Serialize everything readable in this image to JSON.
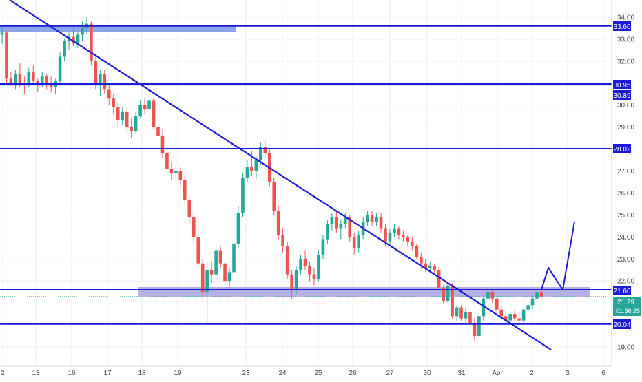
{
  "colors": {
    "background": "#ffffff",
    "grid": "#e9edf3",
    "up": "#26a69a",
    "down": "#ef5350",
    "levels": "#1a1ad6",
    "trendline": "#1a1ad6",
    "zone_top": "#7d9be8",
    "zone_mid": "#a8a2e0",
    "price_tag": "#1a1ad6",
    "last_price_tag": "#26a69a",
    "axis_text": "#4a4a4a"
  },
  "axis": {
    "y_ticks": [
      "34.00",
      "33.00",
      "32.00",
      "30.00",
      "29.00",
      "27.00",
      "26.00",
      "25.00",
      "24.00",
      "23.00",
      "22.00",
      "19.00"
    ],
    "x_ticks": [
      "2",
      "13",
      "16",
      "17",
      "18",
      "19",
      "23",
      "24",
      "25",
      "26",
      "27",
      "30",
      "31",
      "Apr",
      "2",
      "3",
      "6"
    ]
  },
  "price_labels": {
    "l1": "33.60",
    "l2": "30.95",
    "l3": "30.89",
    "l4": "28.02",
    "l5": "21.60",
    "l6": "21.29",
    "l7": "01:36:25",
    "l8": "20.04"
  },
  "chart_data": {
    "type": "candlestick",
    "title": "",
    "xlabel": "",
    "ylabel": "",
    "ylim": [
      18.6,
      34.3
    ],
    "x": [
      "2",
      "13",
      "16",
      "17",
      "18",
      "19",
      "23",
      "24",
      "25",
      "26",
      "27",
      "30",
      "31",
      "Apr",
      "2",
      "3",
      "6"
    ],
    "y_ticks": [
      34.0,
      33.0,
      32.0,
      30.0,
      29.0,
      27.0,
      26.0,
      25.0,
      24.0,
      23.0,
      22.0,
      19.0
    ],
    "horizontal_levels": [
      33.6,
      30.95,
      28.02,
      21.6,
      20.04
    ],
    "support_zone": [
      21.4,
      21.85
    ],
    "resistance_zone": [
      33.5,
      33.7
    ],
    "trendline": {
      "from": [
        "2",
        34.7
      ],
      "to": [
        "3",
        18.9
      ]
    },
    "projection_path": [
      21.6,
      22.6,
      21.6,
      24.7
    ],
    "last_price": 21.29,
    "countdown": "01:36:25",
    "series": [
      {
        "values": [
          [
            33.2,
            33.5,
            32.8,
            33.3
          ],
          [
            33.3,
            33.4,
            31.0,
            31.2
          ],
          [
            31.2,
            31.5,
            30.9,
            31.0
          ],
          [
            31.0,
            31.6,
            30.7,
            31.4
          ],
          [
            31.4,
            31.9,
            30.8,
            31.0
          ],
          [
            31.0,
            31.3,
            30.5,
            30.9
          ],
          [
            30.9,
            31.7,
            30.8,
            31.5
          ],
          [
            31.5,
            31.8,
            30.9,
            31.1
          ],
          [
            31.1,
            31.2,
            30.6,
            30.9
          ],
          [
            30.9,
            31.5,
            30.8,
            31.3
          ],
          [
            31.3,
            31.4,
            30.7,
            31.0
          ],
          [
            31.0,
            31.3,
            30.6,
            30.8
          ],
          [
            30.8,
            31.2,
            30.5,
            31.1
          ],
          [
            31.1,
            32.4,
            31.0,
            32.2
          ],
          [
            32.2,
            33.0,
            32.0,
            32.9
          ],
          [
            32.9,
            33.3,
            32.5,
            33.1
          ],
          [
            33.1,
            33.5,
            32.7,
            32.8
          ],
          [
            32.8,
            33.3,
            32.6,
            33.2
          ],
          [
            33.2,
            33.8,
            32.9,
            33.5
          ],
          [
            33.5,
            34.0,
            33.2,
            33.7
          ],
          [
            33.7,
            33.8,
            31.8,
            32.0
          ],
          [
            32.0,
            32.3,
            30.7,
            30.9
          ],
          [
            30.9,
            31.6,
            30.4,
            31.4
          ],
          [
            31.4,
            31.6,
            30.5,
            30.7
          ],
          [
            30.7,
            31.0,
            30.0,
            30.3
          ],
          [
            30.3,
            30.5,
            29.6,
            29.9
          ],
          [
            29.9,
            30.1,
            29.0,
            29.3
          ],
          [
            29.3,
            29.9,
            29.1,
            29.7
          ],
          [
            29.7,
            29.9,
            28.8,
            29.0
          ],
          [
            29.0,
            29.4,
            28.5,
            28.8
          ],
          [
            28.8,
            29.7,
            28.7,
            29.5
          ],
          [
            29.5,
            30.2,
            29.4,
            30.0
          ],
          [
            30.0,
            30.3,
            29.6,
            29.8
          ],
          [
            29.8,
            30.4,
            29.7,
            30.2
          ],
          [
            30.2,
            30.3,
            28.9,
            29.0
          ],
          [
            29.0,
            29.2,
            28.3,
            28.6
          ],
          [
            28.6,
            28.9,
            27.6,
            27.8
          ],
          [
            27.8,
            28.0,
            26.9,
            27.1
          ],
          [
            27.1,
            27.4,
            26.6,
            26.9
          ],
          [
            26.9,
            27.3,
            26.5,
            27.0
          ],
          [
            27.0,
            27.2,
            26.3,
            26.6
          ],
          [
            26.6,
            26.9,
            25.5,
            25.7
          ],
          [
            25.7,
            25.9,
            24.6,
            24.9
          ],
          [
            24.9,
            25.1,
            23.7,
            24.0
          ],
          [
            24.0,
            24.2,
            22.6,
            22.8
          ],
          [
            22.8,
            23.0,
            21.2,
            21.5
          ],
          [
            21.5,
            22.9,
            20.1,
            22.5
          ],
          [
            22.5,
            22.9,
            21.9,
            22.3
          ],
          [
            22.3,
            23.7,
            22.1,
            23.4
          ],
          [
            23.4,
            23.6,
            22.6,
            22.8
          ],
          [
            22.8,
            23.0,
            21.8,
            22.0
          ],
          [
            22.0,
            22.6,
            21.7,
            22.4
          ],
          [
            22.4,
            23.9,
            22.2,
            23.7
          ],
          [
            23.7,
            25.4,
            23.5,
            25.1
          ],
          [
            25.1,
            26.9,
            24.9,
            26.7
          ],
          [
            26.7,
            27.5,
            26.5,
            27.2
          ],
          [
            27.2,
            27.9,
            26.8,
            27.0
          ],
          [
            27.0,
            27.7,
            26.6,
            27.5
          ],
          [
            27.5,
            28.3,
            27.3,
            28.1
          ],
          [
            28.1,
            28.4,
            27.6,
            27.8
          ],
          [
            27.8,
            28.0,
            26.3,
            26.5
          ],
          [
            26.5,
            26.7,
            25.0,
            25.2
          ],
          [
            25.2,
            25.4,
            23.9,
            24.1
          ],
          [
            24.1,
            24.4,
            23.3,
            23.6
          ],
          [
            23.6,
            23.8,
            22.1,
            22.3
          ],
          [
            22.3,
            22.5,
            21.2,
            21.6
          ],
          [
            21.6,
            22.7,
            21.4,
            22.5
          ],
          [
            22.5,
            23.2,
            22.3,
            23.0
          ],
          [
            23.0,
            23.4,
            22.5,
            22.7
          ],
          [
            22.7,
            22.9,
            22.0,
            22.3
          ],
          [
            22.3,
            22.6,
            21.8,
            22.1
          ],
          [
            22.1,
            23.4,
            22.0,
            23.2
          ],
          [
            23.2,
            24.1,
            23.0,
            23.9
          ],
          [
            23.9,
            24.8,
            23.7,
            24.6
          ],
          [
            24.6,
            25.1,
            24.3,
            24.9
          ],
          [
            24.9,
            25.2,
            24.2,
            24.4
          ],
          [
            24.4,
            24.8,
            23.9,
            24.6
          ],
          [
            24.6,
            25.1,
            24.4,
            24.9
          ],
          [
            24.9,
            25.0,
            23.8,
            24.0
          ],
          [
            24.0,
            24.2,
            23.2,
            23.5
          ],
          [
            23.5,
            24.3,
            23.3,
            24.1
          ],
          [
            24.1,
            24.9,
            23.9,
            24.7
          ],
          [
            24.7,
            25.2,
            24.5,
            25.0
          ],
          [
            25.0,
            25.2,
            24.5,
            24.7
          ],
          [
            24.7,
            25.1,
            24.5,
            24.9
          ],
          [
            24.9,
            25.1,
            24.2,
            24.4
          ],
          [
            24.4,
            24.6,
            23.6,
            23.8
          ],
          [
            23.8,
            24.4,
            23.6,
            24.2
          ],
          [
            24.2,
            24.6,
            24.0,
            24.4
          ],
          [
            24.4,
            24.5,
            23.9,
            24.1
          ],
          [
            24.1,
            24.3,
            23.8,
            24.0
          ],
          [
            24.0,
            24.1,
            23.6,
            23.8
          ],
          [
            23.8,
            24.0,
            23.4,
            23.6
          ],
          [
            23.6,
            23.7,
            23.0,
            23.1
          ],
          [
            23.1,
            23.3,
            22.6,
            22.8
          ],
          [
            22.8,
            23.0,
            22.4,
            22.6
          ],
          [
            22.6,
            22.9,
            22.4,
            22.7
          ],
          [
            22.7,
            22.8,
            22.3,
            22.5
          ],
          [
            22.5,
            22.6,
            21.6,
            21.7
          ],
          [
            21.7,
            21.8,
            21.0,
            21.1
          ],
          [
            21.1,
            21.9,
            21.0,
            21.8
          ],
          [
            21.8,
            21.9,
            20.3,
            20.4
          ],
          [
            20.4,
            20.9,
            20.2,
            20.8
          ],
          [
            20.8,
            20.9,
            20.2,
            20.3
          ],
          [
            20.3,
            20.8,
            20.1,
            20.6
          ],
          [
            20.6,
            20.7,
            20.0,
            20.1
          ],
          [
            20.1,
            20.3,
            19.3,
            19.5
          ],
          [
            19.5,
            20.6,
            19.4,
            20.4
          ],
          [
            20.4,
            21.4,
            20.2,
            21.2
          ],
          [
            21.2,
            21.7,
            21.0,
            21.5
          ],
          [
            21.5,
            21.6,
            21.0,
            21.2
          ],
          [
            21.2,
            21.3,
            20.5,
            20.7
          ],
          [
            20.7,
            20.9,
            20.2,
            20.4
          ],
          [
            20.4,
            20.6,
            20.0,
            20.2
          ],
          [
            20.2,
            20.6,
            20.0,
            20.5
          ],
          [
            20.5,
            20.7,
            20.1,
            20.3
          ],
          [
            20.3,
            20.6,
            20.0,
            20.2
          ],
          [
            20.2,
            20.8,
            20.1,
            20.7
          ],
          [
            20.7,
            21.1,
            20.5,
            20.9
          ],
          [
            20.9,
            21.4,
            20.7,
            21.2
          ],
          [
            21.2,
            21.6,
            21.0,
            21.5
          ],
          [
            21.5,
            21.7,
            21.2,
            21.3
          ]
        ]
      }
    ]
  }
}
